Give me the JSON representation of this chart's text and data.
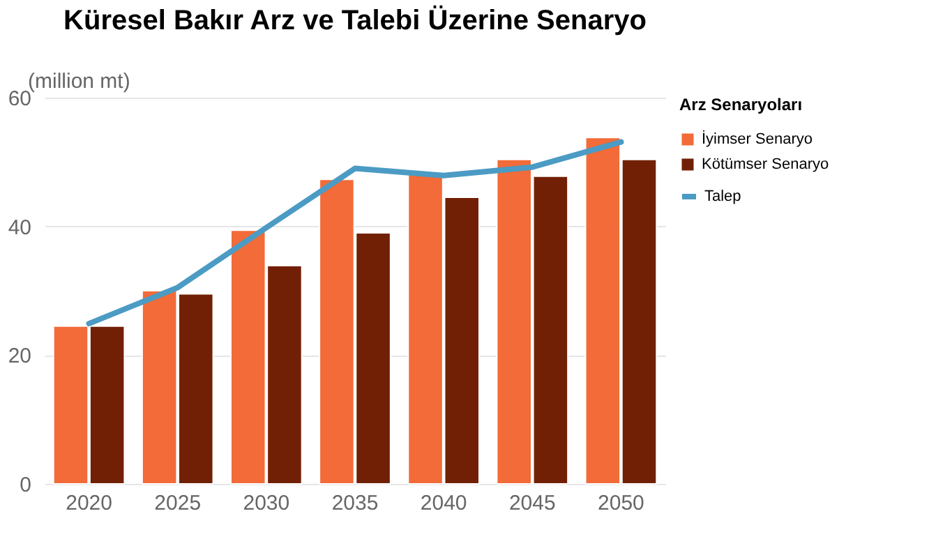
{
  "chart_data": {
    "type": "bar",
    "title": "Küresel Bakır Arz ve Talebi Üzerine Senaryo",
    "ylabel": "(million mt)",
    "legend_title": "Arz Senaryoları",
    "categories": [
      "2020",
      "2025",
      "2030",
      "2035",
      "2040",
      "2045",
      "2050"
    ],
    "series": [
      {
        "name": "İyimser Senaryo",
        "color": "#f26b38",
        "values": [
          24.5,
          30.0,
          39.4,
          47.3,
          48.4,
          50.4,
          53.8
        ]
      },
      {
        "name": "Kötümser Senaryo",
        "color": "#722005",
        "values": [
          24.5,
          29.5,
          33.9,
          39.0,
          44.5,
          47.8,
          50.4
        ]
      },
      {
        "name": "Talep",
        "type": "line",
        "color": "#4b9bc4",
        "values": [
          24.9,
          30.5,
          39.8,
          49.0,
          47.9,
          49.2,
          53.1
        ]
      }
    ],
    "ylim": [
      0,
      60
    ],
    "yticks": [
      0,
      20,
      40,
      60
    ],
    "grid": "y",
    "legend": "right"
  }
}
